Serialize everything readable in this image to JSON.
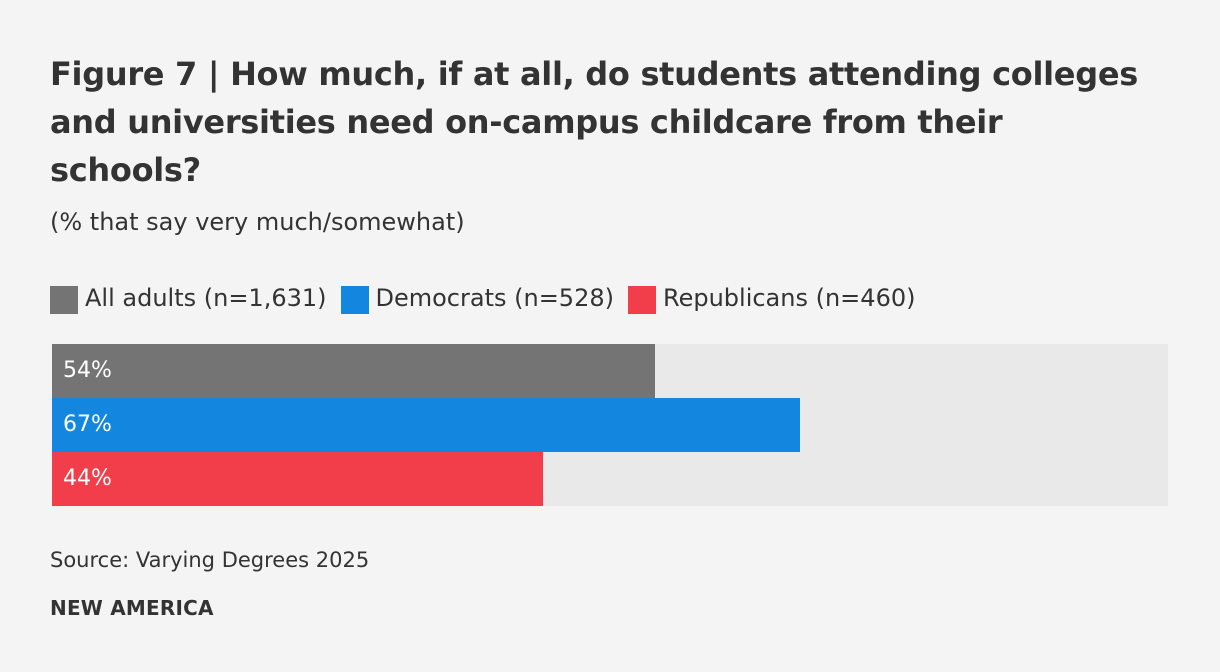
{
  "figure": {
    "title": "Figure 7 | How much, if at all, do students attending colleges and universities need on-campus childcare from their schools?",
    "subtitle": "(% that say very much/somewhat)",
    "source": "Source: Varying Degrees 2025",
    "brand": "NEW AMERICA"
  },
  "legend": {
    "items": [
      {
        "label": "All adults (n=1,631)",
        "color": "#747474"
      },
      {
        "label": "Democrats (n=528)",
        "color": "#1387e0"
      },
      {
        "label": "Republicans (n=460)",
        "color": "#f23e4b"
      }
    ]
  },
  "chart_data": {
    "type": "bar",
    "orientation": "horizontal",
    "title": "Figure 7 | How much, if at all, do students attending colleges and universities need on-campus childcare from their schools?",
    "subtitle": "(% that say very much/somewhat)",
    "categories": [
      "All adults (n=1,631)",
      "Democrats (n=528)",
      "Republicans (n=460)"
    ],
    "values": [
      54,
      67,
      44
    ],
    "value_labels": [
      "54%",
      "67%",
      "44%"
    ],
    "colors": [
      "#747474",
      "#1387e0",
      "#f23e4b"
    ],
    "xlim": [
      0,
      100
    ],
    "track_color": "#e9e9e9",
    "grid": false,
    "legend_position": "top-left",
    "xlabel": "",
    "ylabel": ""
  }
}
